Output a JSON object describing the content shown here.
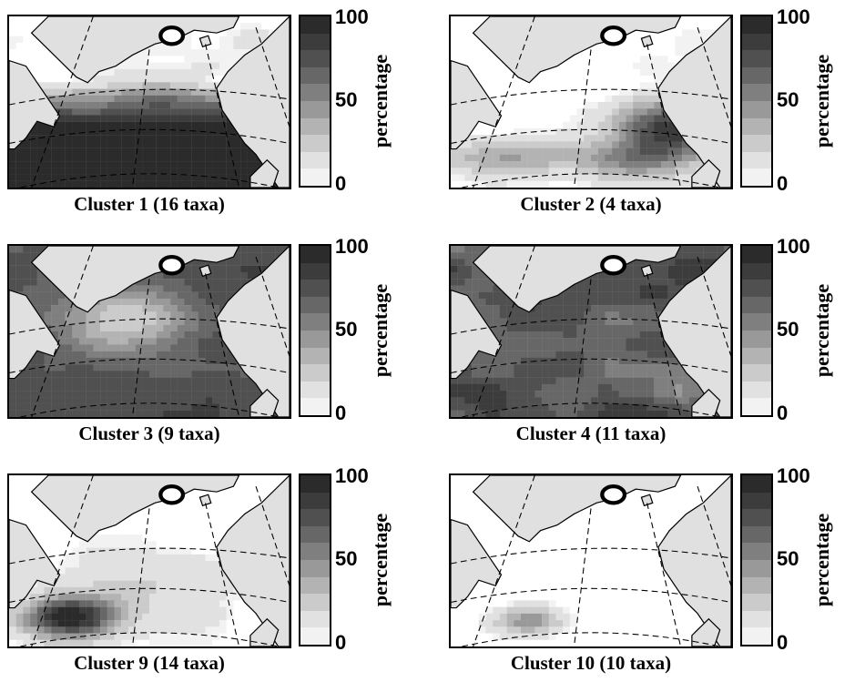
{
  "panels": [
    {
      "caption": "Cluster 1 (16 taxa)",
      "scale_title": "percentage",
      "ticks": [
        "100",
        "50",
        "0"
      ],
      "pattern": "north_sea_high"
    },
    {
      "caption": "Cluster 2 (4 taxa)",
      "scale_title": "percentage",
      "ticks": [
        "100",
        "50",
        "0"
      ],
      "pattern": "east_moderate"
    },
    {
      "caption": "Cluster 3 (9 taxa)",
      "scale_title": "percentage",
      "ticks": [
        "100",
        "50",
        "0"
      ],
      "pattern": "broad_moderate"
    },
    {
      "caption": "Cluster 4 (11 taxa)",
      "scale_title": "percentage",
      "ticks": [
        "100",
        "50",
        "0"
      ],
      "pattern": "widespread_high"
    },
    {
      "caption": "Cluster 9 (14 taxa)",
      "scale_title": "percentage",
      "ticks": [
        "100",
        "50",
        "0"
      ],
      "pattern": "southwest_high"
    },
    {
      "caption": "Cluster 10 (10 taxa)",
      "scale_title": "percentage",
      "ticks": [
        "100",
        "50",
        "0"
      ],
      "pattern": "southwest_small"
    }
  ],
  "colors": {
    "land": "#e0e0e0",
    "scale": [
      "#2b2b2b",
      "#3c3c3c",
      "#505050",
      "#676767",
      "#7f7f7f",
      "#999999",
      "#b3b3b3",
      "#cbcbcb",
      "#e1e1e1",
      "#f2f2f2"
    ]
  }
}
